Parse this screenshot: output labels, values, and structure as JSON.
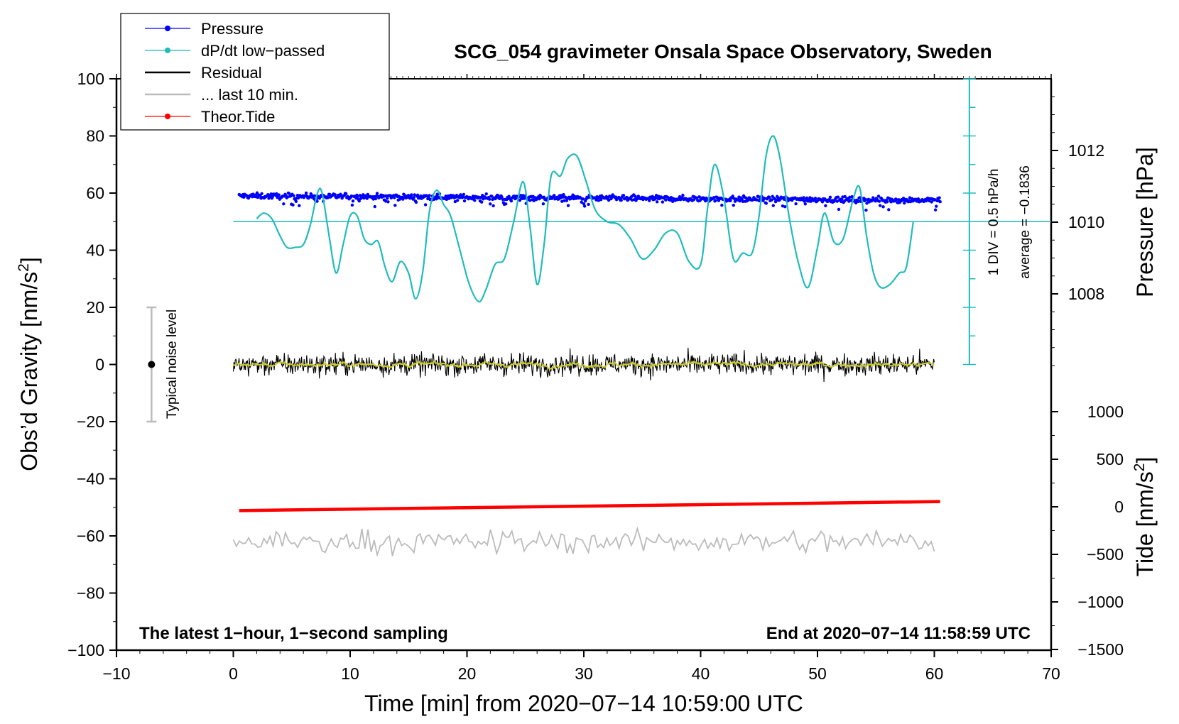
{
  "chart_data": {
    "type": "line",
    "title": "SCG_054 gravimeter Onsala Space Observatory, Sweden",
    "xlabel": "Time [min] from 2020−07−14 10:59:00 UTC",
    "ylabel_left": "Obs’d Gravity [nm/s",
    "ylabel_left_sup": "2",
    "ylabel_left_end": "]",
    "ylabel_pressure": "Pressure [hPa]",
    "ylabel_tide": "Tide [nm/s",
    "ylabel_tide_sup": "2",
    "ylabel_tide_end": "]",
    "xlim": [
      -10,
      70
    ],
    "ylim_left": [
      -100,
      100
    ],
    "pressure_range": [
      1006,
      1014
    ],
    "tide_range": [
      -1500,
      1500
    ],
    "x_ticks": [
      {
        "value": -10,
        "label": "−10"
      },
      {
        "value": 0,
        "label": "0"
      },
      {
        "value": 10,
        "label": "10"
      },
      {
        "value": 20,
        "label": "20"
      },
      {
        "value": 30,
        "label": "30"
      },
      {
        "value": 40,
        "label": "40"
      },
      {
        "value": 50,
        "label": "50"
      },
      {
        "value": 60,
        "label": "60"
      },
      {
        "value": 70,
        "label": "70"
      }
    ],
    "y_ticks_left": [
      {
        "value": 100,
        "label": "100"
      },
      {
        "value": 80,
        "label": "80"
      },
      {
        "value": 60,
        "label": "60"
      },
      {
        "value": 40,
        "label": "40"
      },
      {
        "value": 20,
        "label": "20"
      },
      {
        "value": 0,
        "label": "0"
      },
      {
        "value": -20,
        "label": "−20"
      },
      {
        "value": -40,
        "label": "−40"
      },
      {
        "value": -60,
        "label": "−60"
      },
      {
        "value": -80,
        "label": "−80"
      },
      {
        "value": -100,
        "label": "−100"
      }
    ],
    "pressure_ticks": [
      {
        "value": 1012,
        "label": "1012"
      },
      {
        "value": 1010,
        "label": "1010"
      },
      {
        "value": 1008,
        "label": "1008"
      }
    ],
    "tide_ticks": [
      {
        "value": 1000,
        "label": "1000"
      },
      {
        "value": 500,
        "label": "500"
      },
      {
        "value": 0,
        "label": "0"
      },
      {
        "value": -500,
        "label": "−500"
      },
      {
        "value": -1000,
        "label": "−1000"
      },
      {
        "value": -1500,
        "label": "−1500"
      }
    ],
    "legend": [
      {
        "name": "Pressure",
        "color": "#0000ff",
        "marker": true
      },
      {
        "name": "dP/dt low−passed",
        "color": "#22bbbb",
        "marker": true
      },
      {
        "name": "Residual",
        "color": "#000000",
        "marker": false
      },
      {
        "name": "... last 10 min.",
        "color": "#bbbbbb",
        "marker": false
      },
      {
        "name": "Theor.Tide",
        "color": "#ff0000",
        "marker": true
      }
    ],
    "annotations": {
      "bottom_left": "The latest 1−hour, 1−second sampling",
      "bottom_right": "End at 2020−07−14 11:58:59 UTC",
      "div_text": "1 DIV = 0.5 hPa/h",
      "average_text": "average = −0.1836",
      "noise_label": "Typical noise level"
    },
    "noise_bar": {
      "x": -7,
      "center": 0,
      "low": -20,
      "high": 20
    },
    "dpdt_scale": {
      "x": 63,
      "bottom": 0,
      "top": 100,
      "baseline": 50,
      "baseline_x": [
        0,
        63
      ]
    },
    "series": [
      {
        "name": "dP/dt low-passed",
        "color": "#22bbbb",
        "x": [
          2.0,
          2.6,
          3.3,
          4.0,
          4.6,
          5.3,
          6.0,
          6.6,
          7.2,
          7.6,
          8.2,
          8.8,
          9.4,
          10.0,
          10.6,
          11.2,
          11.8,
          12.4,
          13.0,
          13.6,
          14.3,
          15.0,
          15.6,
          16.2,
          16.8,
          17.4,
          18.0,
          18.6,
          19.4,
          20.2,
          21.0,
          21.6,
          22.4,
          23.2,
          24.0,
          24.8,
          25.4,
          26.0,
          26.6,
          27.2,
          28.0,
          28.6,
          29.4,
          30.2,
          31.0,
          32.0,
          33.0,
          34.0,
          35.0,
          36.0,
          37.0,
          38.0,
          39.0,
          40.0,
          40.6,
          41.2,
          42.0,
          42.8,
          43.6,
          44.4,
          45.0,
          45.6,
          46.2,
          46.8,
          47.6,
          48.4,
          49.2,
          50.0,
          50.6,
          51.4,
          52.2,
          53.0,
          53.6,
          54.2,
          54.8,
          55.4,
          56.2,
          57.0,
          57.6,
          58.2
        ],
        "y": [
          51,
          53,
          51,
          45,
          41,
          41,
          42,
          49,
          60,
          60,
          45,
          32,
          42,
          52,
          52,
          44,
          42,
          43,
          34,
          29,
          36,
          32,
          23,
          32,
          54,
          61,
          56,
          52,
          40,
          28,
          22,
          26,
          35,
          37,
          50,
          64,
          48,
          28,
          42,
          66,
          66,
          72,
          73,
          64,
          54,
          50,
          49,
          44,
          37,
          40,
          46,
          46,
          36,
          35,
          55,
          70,
          58,
          37,
          39,
          39,
          52,
          73,
          80,
          72,
          51,
          35,
          27,
          41,
          53,
          43,
          44,
          57,
          62,
          45,
          32,
          27,
          28,
          32,
          34,
          50
        ]
      },
      {
        "name": "Theor.Tide",
        "color": "#ff0000",
        "x": [
          0.5,
          60.5
        ],
        "tide": [
          -40,
          55
        ]
      }
    ],
    "pressure_band": {
      "x": [
        0.5,
        60.5
      ],
      "y_start": 59,
      "y_end": 57.5,
      "spread": 0.8
    },
    "residual_band": {
      "x": [
        0,
        60
      ],
      "center": 0,
      "amplitude": 3.5
    },
    "last10_band": {
      "x": [
        0,
        60
      ],
      "center": -62,
      "amplitude": 4
    }
  }
}
